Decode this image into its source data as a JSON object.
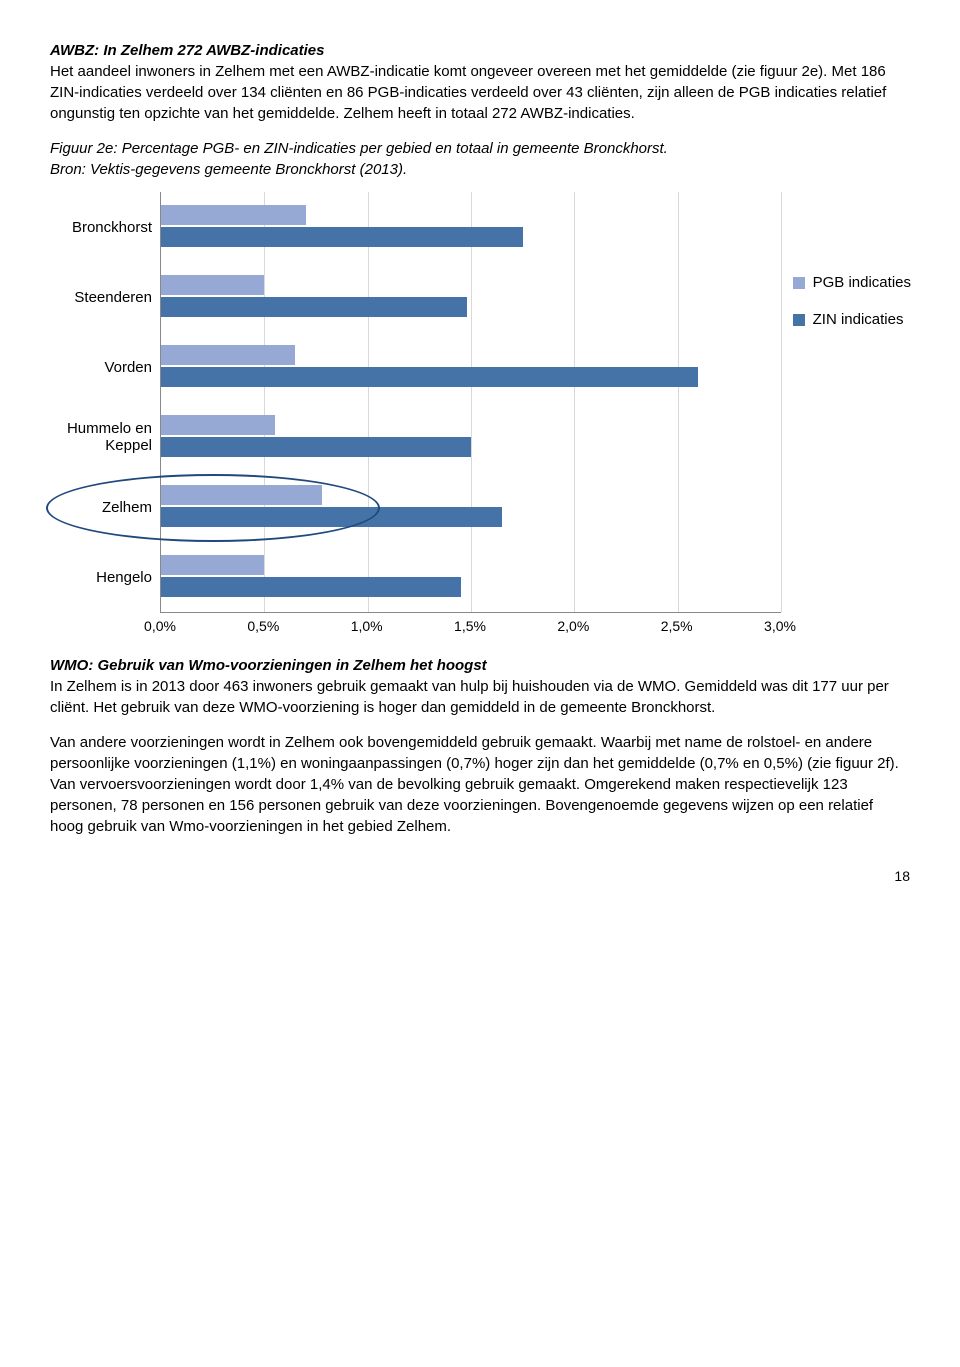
{
  "section1": {
    "heading": "AWBZ: In Zelhem  272 AWBZ-indicaties",
    "p1": "Het aandeel inwoners in Zelhem met een  AWBZ-indicatie komt ongeveer overeen met het gemiddelde (zie figuur 2e). Met 186 ZIN-indicaties verdeeld over 134 cliënten en 86 PGB-indicaties verdeeld over 43 cliënten, zijn alleen de PGB indicaties relatief ongunstig ten opzichte van het gemiddelde. Zelhem heeft in totaal 272 AWBZ-indicaties."
  },
  "figure": {
    "caption_line1": "Figuur 2e: Percentage PGB- en ZIN-indicaties per gebied en totaal in gemeente Bronckhorst.",
    "caption_line2": "Bron: Vektis-gegevens gemeente Bronckhorst (2013).",
    "categories": [
      "Bronckhorst",
      "Steenderen",
      "Vorden",
      "Hummelo en Keppel",
      "Zelhem",
      "Hengelo"
    ],
    "series": {
      "pgb": {
        "label": "PGB indicaties",
        "color": "#95a9d4",
        "values": [
          0.7,
          0.5,
          0.65,
          0.55,
          0.78,
          0.5
        ]
      },
      "zin": {
        "label": "ZIN indicaties",
        "color": "#4573a7",
        "values": [
          1.75,
          1.48,
          2.6,
          1.5,
          1.65,
          1.45
        ]
      }
    },
    "xticks": [
      "0,0%",
      "0,5%",
      "1,0%",
      "1,5%",
      "2,0%",
      "2,5%",
      "3,0%"
    ],
    "xmax": 3.0,
    "highlight_index": 4,
    "grid_color": "#d9d9d9",
    "axis_color": "#888888",
    "ellipse_color": "#1f497d"
  },
  "section2": {
    "heading": "WMO: Gebruik van Wmo-voorzieningen in Zelhem het hoogst",
    "p1": "In Zelhem is in 2013 door 463 inwoners gebruik gemaakt van hulp bij huishouden via de WMO. Gemiddeld was dit 177 uur per cliënt. Het gebruik van deze WMO-voorziening is hoger dan gemiddeld in de gemeente Bronckhorst.",
    "p2": "Van andere voorzieningen wordt in Zelhem ook bovengemiddeld gebruik gemaakt. Waarbij met name de rolstoel- en andere persoonlijke voorzieningen (1,1%) en woningaanpassingen (0,7%) hoger zijn dan het gemiddelde (0,7% en 0,5%) (zie figuur 2f). Van vervoersvoorzieningen wordt door 1,4% van de bevolking gebruik gemaakt. Omgerekend maken respectievelijk 123 personen, 78 personen en 156 personen gebruik van deze voorzieningen. Bovengenoemde gegevens wijzen op een relatief hoog gebruik van Wmo-voorzieningen in het gebied Zelhem."
  },
  "page_number": "18"
}
